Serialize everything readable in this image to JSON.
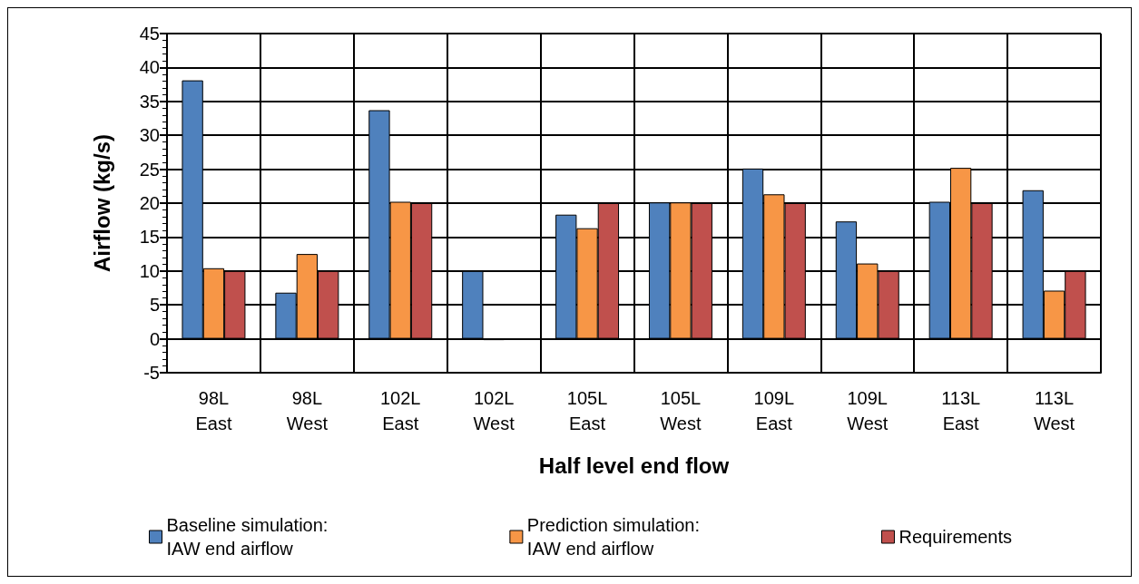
{
  "chart_data": {
    "type": "bar",
    "xlabel": "Half level end flow",
    "ylabel": "Airflow (kg/s)",
    "categories": [
      "98L\nEast",
      "98L\nWest",
      "102L\nEast",
      "102L\nWest",
      "105L\nEast",
      "105L\nWest",
      "109L\nEast",
      "109L\nWest",
      "113L\nEast",
      "113L\nWest"
    ],
    "series": [
      {
        "name": "Baseline simulation:\nIAW end airflow",
        "color": "#4f81bd",
        "values": [
          38.1,
          6.8,
          33.7,
          10,
          18.3,
          20.1,
          25.1,
          17.3,
          20.2,
          21.9
        ]
      },
      {
        "name": "Prediction simulation:\nIAW end airflow",
        "color": "#f79646",
        "values": [
          10.4,
          12.5,
          20.2,
          -0.2,
          16.3,
          20.1,
          21.3,
          11.1,
          25.2,
          7.1
        ]
      },
      {
        "name": "Requirements",
        "color": "#c0504d",
        "values": [
          10,
          10,
          20,
          null,
          20,
          20,
          20,
          10,
          20,
          10
        ]
      }
    ],
    "ylim": [
      -5,
      45
    ],
    "yticks": [
      -5,
      0,
      5,
      10,
      15,
      20,
      25,
      30,
      35,
      40,
      45
    ],
    "grid": true,
    "legend": "bottom"
  }
}
